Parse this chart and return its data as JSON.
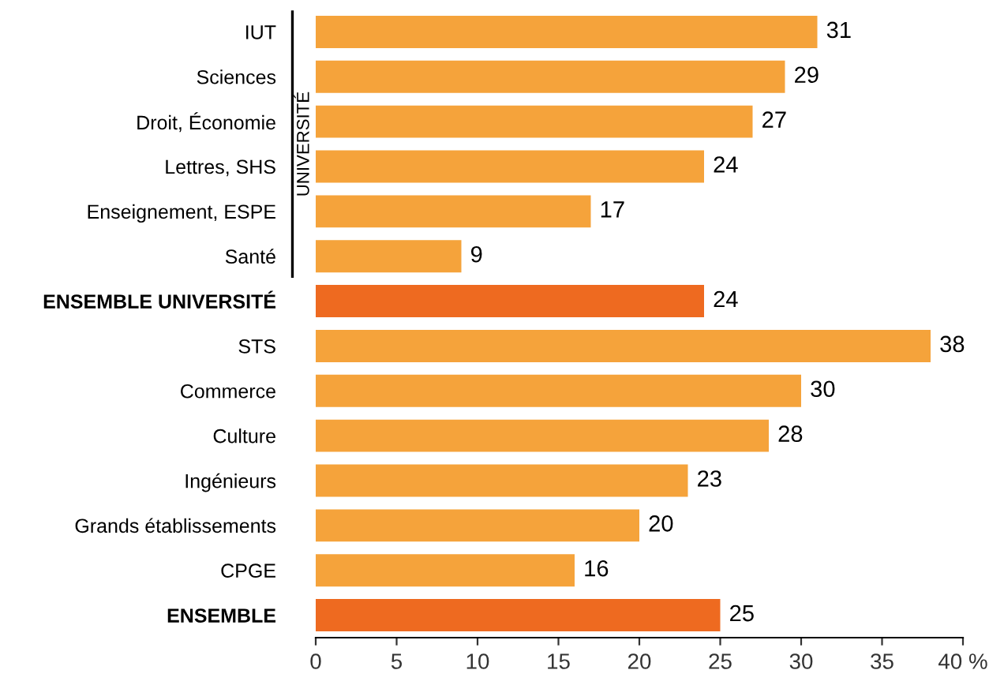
{
  "chart_data": {
    "type": "bar",
    "orientation": "horizontal",
    "categories": [
      "IUT",
      "Sciences",
      "Droit, Économie",
      "Lettres, SHS",
      "Enseignement, ESPE",
      "Santé",
      "ENSEMBLE UNIVERSITÉ",
      "STS",
      "Commerce",
      "Culture",
      "Ingénieurs",
      "Grands établissements",
      "CPGE",
      "ENSEMBLE"
    ],
    "values": [
      31,
      29,
      27,
      24,
      17,
      9,
      24,
      38,
      30,
      28,
      23,
      20,
      16,
      25
    ],
    "colors": [
      "#f5a33b",
      "#f5a33b",
      "#f5a33b",
      "#f5a33b",
      "#f5a33b",
      "#f5a33b",
      "#ee6a20",
      "#f5a33b",
      "#f5a33b",
      "#f5a33b",
      "#f5a33b",
      "#f5a33b",
      "#f5a33b",
      "#ee6a20"
    ],
    "xlim": [
      0,
      40
    ],
    "xticks": [
      0,
      5,
      10,
      15,
      20,
      25,
      30,
      35,
      {
        "value": 40,
        "label": "40 %"
      }
    ],
    "data_labels": true,
    "grid": false,
    "legend": false,
    "annotations": [
      "UNIVERSITÉ"
    ]
  }
}
